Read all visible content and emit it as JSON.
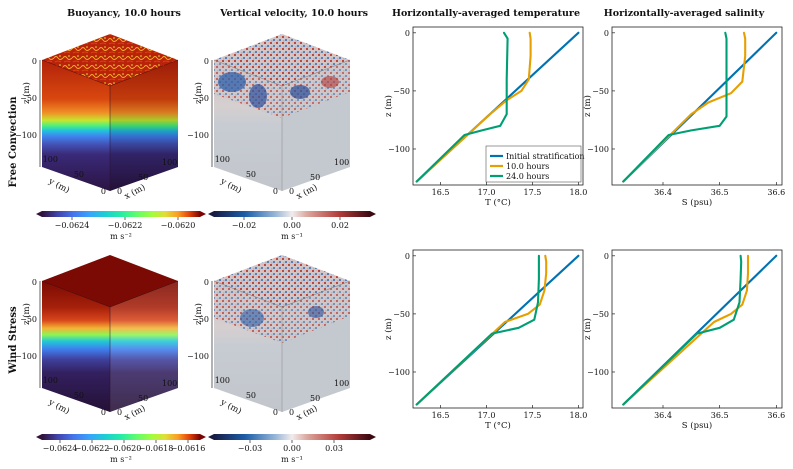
{
  "columns": {
    "buoyancy": "Buoyancy, 10.0 hours",
    "velocity": "Vertical velocity, 10.0 hours",
    "temperature": "Horizontally-averaged temperature",
    "salinity": "Horizontally-averaged salinity"
  },
  "rows": [
    "Free Convection",
    "Wind Stress"
  ],
  "cube_axes": {
    "z_label": "z (m)",
    "y_label": "y (m)",
    "x_label": "x (m)",
    "z_ticks": [
      "0",
      "−50",
      "−100"
    ],
    "y_ticks": [
      "100",
      "50",
      "0"
    ],
    "x_ticks": [
      "0",
      "50",
      "100"
    ]
  },
  "colorbars": {
    "buoyancy_fc": {
      "ticks": [
        "−0.0624",
        "−0.0622",
        "−0.0620"
      ],
      "unit": "m s⁻²"
    },
    "velocity_fc": {
      "ticks": [
        "−0.02",
        "0.00",
        "0.02"
      ],
      "unit": "m s⁻¹"
    },
    "buoyancy_ws": {
      "ticks": [
        "−0.0624",
        "−0.0622",
        "−0.0620",
        "−0.0618",
        "−0.0616"
      ],
      "unit": "m s⁻²"
    },
    "velocity_ws": {
      "ticks": [
        "−0.03",
        "0.00",
        "0.03"
      ],
      "unit": "m s⁻¹"
    }
  },
  "legend": [
    "Initial stratification",
    "10.0 hours",
    "24.0 hours"
  ],
  "colors": {
    "initial": "#0072b2",
    "h10": "#e69f00",
    "h24": "#009e73"
  },
  "chart_data": [
    {
      "type": "line",
      "id": "T_fc",
      "title": "Horizontally-averaged temperature",
      "xlabel": "T (°C)",
      "ylabel": "z (m)",
      "xlim": [
        16.2,
        18.05
      ],
      "ylim": [
        -131,
        5
      ],
      "xticks": [
        16.5,
        17.0,
        17.5,
        18.0
      ],
      "xticklabels": [
        "16.5",
        "17.0",
        "17.5",
        "18.0"
      ],
      "yticks": [
        0,
        -50,
        -100
      ],
      "yticklabels": [
        "0",
        "−50",
        "−100"
      ],
      "series": [
        {
          "name": "Initial stratification",
          "x": [
            16.24,
            18.0
          ],
          "y": [
            -128,
            0
          ]
        },
        {
          "name": "10.0 hours",
          "x": [
            16.24,
            17.04,
            17.22,
            17.38,
            17.46,
            17.48,
            17.48,
            17.47
          ],
          "y": [
            -128,
            -70,
            -58,
            -50,
            -40,
            -20,
            -5,
            0
          ]
        },
        {
          "name": "24.0 hours",
          "x": [
            16.24,
            16.76,
            16.95,
            17.15,
            17.22,
            17.22,
            17.23,
            17.19
          ],
          "y": [
            -128,
            -88,
            -84,
            -80,
            -70,
            -40,
            -5,
            0
          ]
        }
      ]
    },
    {
      "type": "line",
      "id": "S_fc",
      "title": "Horizontally-averaged salinity",
      "xlabel": "S (psu)",
      "ylabel": "z (m)",
      "xlim": [
        36.31,
        36.61
      ],
      "ylim": [
        -131,
        5
      ],
      "xticks": [
        36.4,
        36.5,
        36.6
      ],
      "xticklabels": [
        "36.4",
        "36.5",
        "36.6"
      ],
      "yticks": [
        0,
        -50,
        -100
      ],
      "yticklabels": [
        "0",
        "−50",
        "−100"
      ],
      "series": [
        {
          "name": "Initial stratification",
          "x": [
            36.33,
            36.6
          ],
          "y": [
            -128,
            0
          ]
        },
        {
          "name": "10.0 hours",
          "x": [
            36.33,
            36.45,
            36.48,
            36.52,
            36.54,
            36.545,
            36.545,
            36.543
          ],
          "y": [
            -128,
            -70,
            -60,
            -52,
            -42,
            -20,
            -5,
            0
          ]
        },
        {
          "name": "24.0 hours",
          "x": [
            36.33,
            36.41,
            36.45,
            36.5,
            36.512,
            36.512,
            36.512,
            36.51
          ],
          "y": [
            -128,
            -88,
            -84,
            -80,
            -72,
            -40,
            -5,
            0
          ]
        }
      ]
    },
    {
      "type": "line",
      "id": "T_ws",
      "title": "Horizontally-averaged temperature",
      "xlabel": "T (°C)",
      "ylabel": "z (m)",
      "xlim": [
        16.2,
        18.05
      ],
      "ylim": [
        -131,
        5
      ],
      "xticks": [
        16.5,
        17.0,
        17.5,
        18.0
      ],
      "xticklabels": [
        "16.5",
        "17.0",
        "17.5",
        "18.0"
      ],
      "yticks": [
        0,
        -50,
        -100
      ],
      "yticklabels": [
        "0",
        "−50",
        "−100"
      ],
      "series": [
        {
          "name": "Initial stratification",
          "x": [
            16.24,
            18.0
          ],
          "y": [
            -128,
            0
          ]
        },
        {
          "name": "10.0 hours",
          "x": [
            16.24,
            17.2,
            17.45,
            17.58,
            17.63,
            17.65,
            17.65,
            17.64
          ],
          "y": [
            -128,
            -57,
            -50,
            -42,
            -30,
            -15,
            -5,
            0
          ]
        },
        {
          "name": "24.0 hours",
          "x": [
            16.24,
            17.06,
            17.35,
            17.52,
            17.56,
            17.57,
            17.57,
            17.57
          ],
          "y": [
            -128,
            -67,
            -62,
            -55,
            -40,
            -20,
            -5,
            0
          ]
        }
      ]
    },
    {
      "type": "line",
      "id": "S_ws",
      "title": "Horizontally-averaged salinity",
      "xlabel": "S (psu)",
      "ylabel": "z (m)",
      "xlim": [
        36.31,
        36.61
      ],
      "ylim": [
        -131,
        5
      ],
      "xticks": [
        36.4,
        36.5,
        36.6
      ],
      "xticklabels": [
        "36.4",
        "36.5",
        "36.6"
      ],
      "yticks": [
        0,
        -50,
        -100
      ],
      "yticklabels": [
        "0",
        "−50",
        "−100"
      ],
      "series": [
        {
          "name": "Initial stratification",
          "x": [
            36.33,
            36.6
          ],
          "y": [
            -128,
            0
          ]
        },
        {
          "name": "10.0 hours",
          "x": [
            36.33,
            36.49,
            36.52,
            36.54,
            36.548,
            36.55,
            36.55,
            36.55
          ],
          "y": [
            -128,
            -57,
            -50,
            -42,
            -30,
            -15,
            -5,
            0
          ]
        },
        {
          "name": "24.0 hours",
          "x": [
            36.33,
            36.46,
            36.5,
            36.525,
            36.535,
            36.537,
            36.538,
            36.537
          ],
          "y": [
            -128,
            -67,
            -62,
            -55,
            -40,
            -20,
            -5,
            0
          ]
        }
      ]
    }
  ]
}
